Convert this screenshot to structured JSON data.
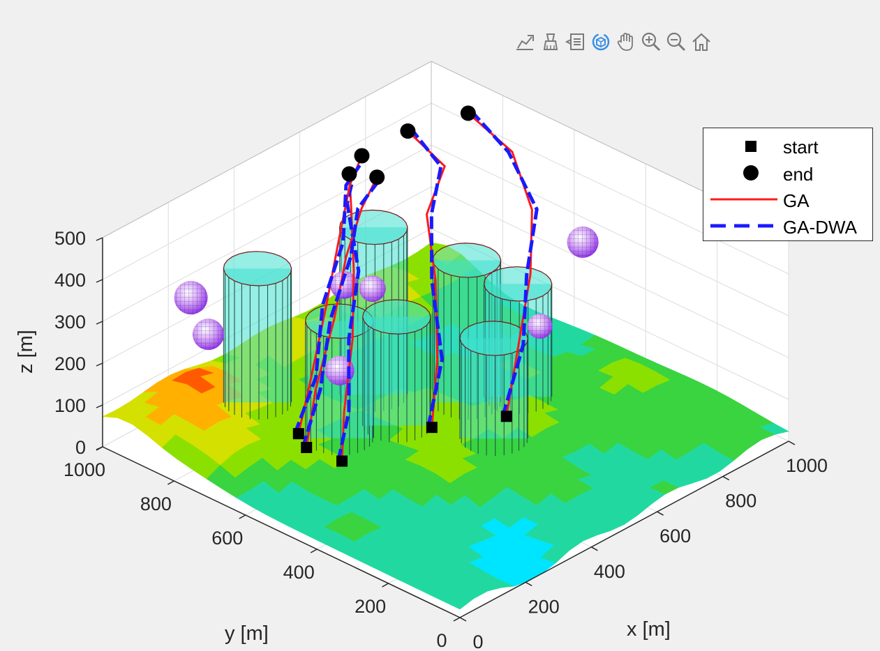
{
  "toolbar": {
    "buttons": [
      {
        "name": "export-icon"
      },
      {
        "name": "brush-icon"
      },
      {
        "name": "data-tips-icon"
      },
      {
        "name": "rotate-3d-icon",
        "active": true
      },
      {
        "name": "pan-hand-icon"
      },
      {
        "name": "zoom-in-icon"
      },
      {
        "name": "zoom-out-icon"
      },
      {
        "name": "home-icon"
      }
    ],
    "active_color": "#3a8ee6",
    "icon_color": "#7a7a7a"
  },
  "chart_data": {
    "type": "3d-surface-paths",
    "xlabel": "x [m]",
    "ylabel": "y [m]",
    "zlabel": "z [m]",
    "xlim": [
      0,
      1000
    ],
    "ylim": [
      0,
      1000
    ],
    "zlim": [
      0,
      500
    ],
    "xticks": [
      "0",
      "200",
      "400",
      "600",
      "800",
      "1000"
    ],
    "yticks": [
      "0",
      "200",
      "400",
      "600",
      "800",
      "1000"
    ],
    "zticks": [
      "0",
      "100",
      "200",
      "300",
      "400",
      "500"
    ],
    "grid": true,
    "legend_position": "top-right",
    "legend": [
      {
        "label": "start",
        "marker": "square",
        "color": "#000000"
      },
      {
        "label": "end",
        "marker": "circle",
        "color": "#000000"
      },
      {
        "label": "GA",
        "line": "solid",
        "color": "#ff1a1a"
      },
      {
        "label": "GA-DWA",
        "line": "dashed",
        "color": "#1a1aff"
      }
    ],
    "terrain_colormap": [
      "#00e5ff",
      "#21d9a0",
      "#39d440",
      "#8ce000",
      "#d4e000",
      "#ffb000",
      "#ff5a00",
      "#e00000"
    ],
    "obstacle_color": "#40e0d0",
    "sphere_color": "#b040e8"
  }
}
